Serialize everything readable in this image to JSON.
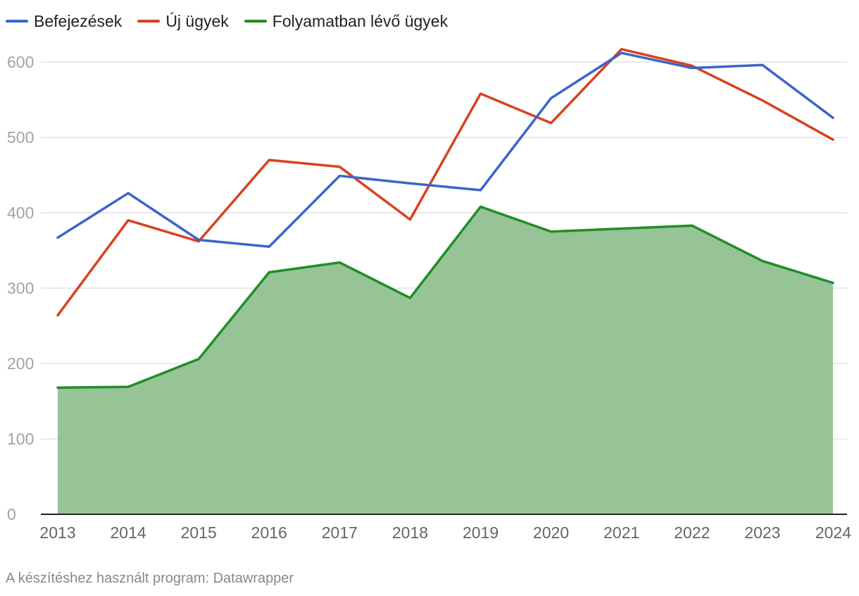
{
  "chart_data": {
    "type": "line",
    "title": "",
    "xlabel": "",
    "ylabel": "",
    "x": [
      "2013",
      "2014",
      "2015",
      "2016",
      "2017",
      "2018",
      "2019",
      "2020",
      "2021",
      "2022",
      "2023",
      "2024"
    ],
    "ylim": [
      0,
      600
    ],
    "yticks": [
      "0",
      "100",
      "200",
      "300",
      "400",
      "500",
      "600"
    ],
    "grid": true,
    "legend_position": "top-left",
    "series": [
      {
        "name": "Befejezések",
        "color": "#3a65c9",
        "area": false,
        "values": [
          367,
          426,
          364,
          355,
          449,
          439,
          430,
          552,
          612,
          592,
          596,
          526
        ]
      },
      {
        "name": "Új ügyek",
        "color": "#d9411e",
        "area": false,
        "values": [
          264,
          390,
          362,
          470,
          461,
          391,
          558,
          519,
          617,
          595,
          549,
          497
        ]
      },
      {
        "name": "Folyamatban lévő ügyek",
        "color": "#1f8f24",
        "area": true,
        "fill": "#97c497",
        "values": [
          168,
          169,
          206,
          321,
          334,
          287,
          408,
          375,
          379,
          383,
          336,
          307
        ]
      }
    ]
  },
  "footer": {
    "text": "A készítéshez használt program: Datawrapper"
  }
}
